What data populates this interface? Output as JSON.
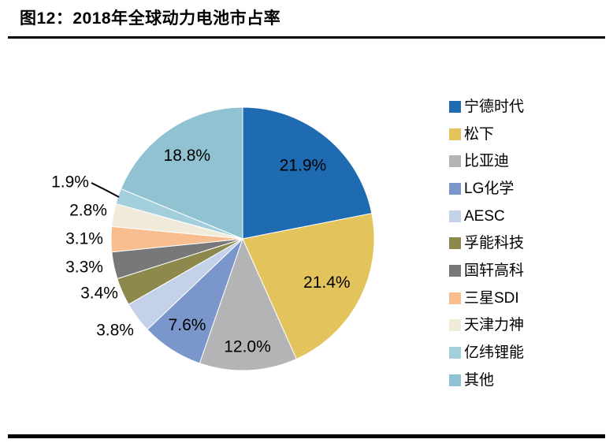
{
  "header": {
    "title": "图12：2018年全球动力电池市占率"
  },
  "chart_data": {
    "type": "pie",
    "title": "2018年全球动力电池市占率",
    "legend_position": "right",
    "start_angle_deg": 0,
    "direction": "clockwise",
    "unit": "%",
    "series": [
      {
        "name": "宁德时代",
        "value": 21.9,
        "label": "21.9%",
        "color": "#1E6BB1"
      },
      {
        "name": "松下",
        "value": 21.4,
        "label": "21.4%",
        "color": "#E3C45C"
      },
      {
        "name": "比亚迪",
        "value": 12.0,
        "label": "12.0%",
        "color": "#B4B4B6"
      },
      {
        "name": "LG化学",
        "value": 7.6,
        "label": "7.6%",
        "color": "#7B96CA"
      },
      {
        "name": "AESC",
        "value": 3.8,
        "label": "3.8%",
        "color": "#C3D2E8"
      },
      {
        "name": "孚能科技",
        "value": 3.4,
        "label": "3.4%",
        "color": "#8D894D"
      },
      {
        "name": "国轩高科",
        "value": 3.3,
        "label": "3.3%",
        "color": "#78787B"
      },
      {
        "name": "三星SDI",
        "value": 3.1,
        "label": "3.1%",
        "color": "#F9BE8F"
      },
      {
        "name": "天津力神",
        "value": 2.8,
        "label": "2.8%",
        "color": "#F0EADB"
      },
      {
        "name": "亿纬锂能",
        "value": 1.9,
        "label": "1.9%",
        "color": "#A3CFDD"
      },
      {
        "name": "其他",
        "value": 18.8,
        "label": "18.8%",
        "color": "#90C2D2"
      }
    ]
  }
}
